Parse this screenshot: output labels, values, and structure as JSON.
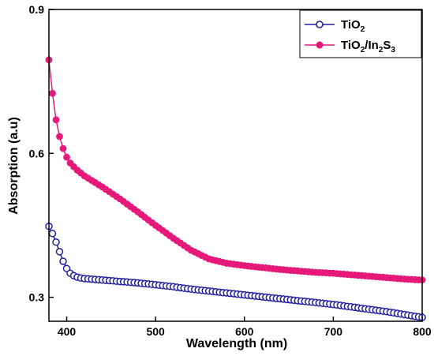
{
  "chart_data": {
    "type": "line",
    "title": "",
    "xlabel": "Wavelength (nm)",
    "ylabel": "Absorption (a.u)",
    "xlim": [
      380,
      800
    ],
    "ylim": [
      0.25,
      0.9
    ],
    "x_ticks": [
      400,
      500,
      600,
      700,
      800
    ],
    "x_tick_labels": [
      "400",
      "500",
      "600",
      "700",
      "800"
    ],
    "y_ticks": [
      0.3,
      0.6,
      0.9
    ],
    "y_tick_labels": [
      "0.3",
      "0.6",
      "0.9"
    ],
    "grid": false,
    "legend_position": "top-right",
    "series": [
      {
        "name_base": "TiO",
        "name_sub": "2",
        "color": "#1f1fa0",
        "marker": "open-circle",
        "x": [
          380,
          384,
          388,
          392,
          396,
          400,
          404,
          408,
          412,
          416,
          420,
          440,
          460,
          480,
          500,
          520,
          540,
          560,
          580,
          600,
          620,
          640,
          660,
          680,
          700,
          720,
          740,
          760,
          780,
          800
        ],
        "y": [
          0.448,
          0.433,
          0.415,
          0.395,
          0.375,
          0.36,
          0.35,
          0.345,
          0.342,
          0.34,
          0.339,
          0.336,
          0.333,
          0.33,
          0.326,
          0.322,
          0.317,
          0.313,
          0.309,
          0.305,
          0.301,
          0.297,
          0.293,
          0.289,
          0.285,
          0.28,
          0.275,
          0.27,
          0.264,
          0.258
        ]
      },
      {
        "name_base": "TiO",
        "name_sub": "2",
        "name_mid": "/In",
        "name_sub2": "2",
        "name_end": "S",
        "name_sub3": "3",
        "color": "#e6197a",
        "marker": "filled-circle",
        "x": [
          380,
          384,
          388,
          392,
          396,
          400,
          404,
          408,
          412,
          420,
          440,
          460,
          480,
          500,
          520,
          540,
          560,
          580,
          600,
          620,
          640,
          660,
          680,
          700,
          720,
          740,
          760,
          780,
          800
        ],
        "y": [
          0.795,
          0.725,
          0.67,
          0.635,
          0.61,
          0.592,
          0.58,
          0.572,
          0.565,
          0.553,
          0.53,
          0.505,
          0.478,
          0.45,
          0.423,
          0.398,
          0.38,
          0.371,
          0.366,
          0.362,
          0.358,
          0.355,
          0.352,
          0.35,
          0.347,
          0.344,
          0.341,
          0.338,
          0.336
        ]
      }
    ]
  }
}
